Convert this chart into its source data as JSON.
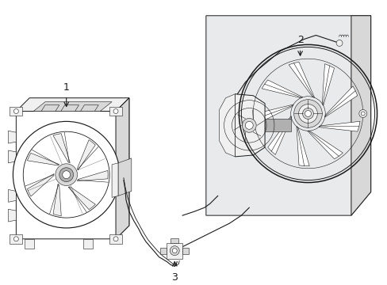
{
  "bg_color": "#ffffff",
  "line_color": "#1a1a1a",
  "light_gray": "#d8d8d8",
  "mid_gray": "#b0b0b0",
  "fill_light": "#f0f0f0",
  "fill_panel": "#e8eaec",
  "labels": [
    "1",
    "2",
    "3"
  ],
  "figsize": [
    4.89,
    3.6
  ],
  "dpi": 100,
  "lw_main": 0.7,
  "lw_thick": 1.1,
  "lw_thin": 0.4
}
